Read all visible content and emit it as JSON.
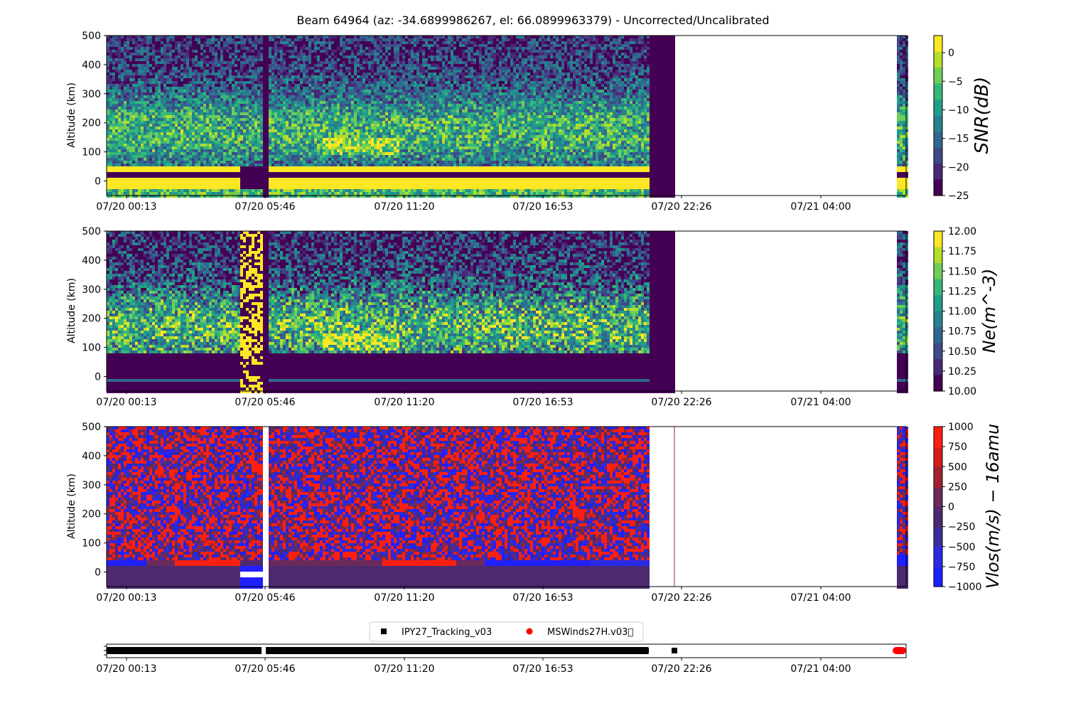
{
  "figure_title": "Beam 64964 (az: -34.6899986267, el: 66.0899963379) - Uncorrected/Uncalibrated",
  "colors": {
    "viridis": [
      "#440154",
      "#482878",
      "#3e4a89",
      "#31688e",
      "#26828e",
      "#1f9e89",
      "#35b779",
      "#6ece58",
      "#b5de2b",
      "#fde725"
    ],
    "bwr": [
      "#1f1fff",
      "#2a2ae6",
      "#3a2f9e",
      "#4d2a70",
      "#6a2b5a",
      "#a0232f",
      "#d81c18",
      "#ff1f10"
    ],
    "tracking_marker": "#000000",
    "winds_marker": "#ff0000"
  },
  "chart_data": [
    {
      "type": "heatmap",
      "panel": "snr",
      "title": "",
      "xlabel": "",
      "ylabel": "Altitude (km)",
      "colorbar_label": "SNR(dB)",
      "colorbar_range": [
        -25,
        3
      ],
      "colorbar_ticks": [
        "0",
        "−5",
        "−10",
        "−15",
        "−20",
        "−25"
      ],
      "colorbar_tick_values": [
        0,
        -5,
        -10,
        -15,
        -20,
        -25
      ],
      "ylim": [
        -50,
        500
      ],
      "yticks": [
        0,
        100,
        200,
        300,
        400,
        500
      ],
      "xticks": [
        "07/20 00:13",
        "07/20 05:46",
        "07/20 11:20",
        "07/20 16:53",
        "07/20 22:26",
        "07/21 04:00"
      ],
      "segments": [
        {
          "start": "07/20 00:13",
          "end": "07/20 05:46",
          "state": "data"
        },
        {
          "start": "07/20 05:46",
          "end": "07/20 21:30",
          "state": "data"
        },
        {
          "start": "07/20 22:30",
          "end": "07/21 06:00",
          "state": "no data"
        },
        {
          "start": "07/21 06:00",
          "end": "07/21 06:30",
          "state": "data"
        }
      ],
      "features": {
        "background_snr_db": -10,
        "enhanced_layer_altitude_km": [
          100,
          140
        ],
        "saturated_band_altitude_km": [
          -25,
          15
        ],
        "saturated_band_snr_db": 3
      }
    },
    {
      "type": "heatmap",
      "panel": "ne",
      "title": "",
      "xlabel": "",
      "ylabel": "Altitude (km)",
      "colorbar_label": "Ne(m^-3)",
      "colorbar_range": [
        10.0,
        12.0
      ],
      "colorbar_ticks": [
        "10.00",
        "10.25",
        "10.50",
        "10.75",
        "11.00",
        "11.25",
        "11.50",
        "11.75",
        "12.00"
      ],
      "colorbar_tick_values": [
        10.0,
        10.25,
        10.5,
        10.75,
        11.0,
        11.25,
        11.5,
        11.75,
        12.0
      ],
      "ylim": [
        -50,
        500
      ],
      "yticks": [
        0,
        100,
        200,
        300,
        400,
        500
      ],
      "xticks": [
        "07/20 00:13",
        "07/20 05:46",
        "07/20 11:20",
        "07/20 16:53",
        "07/20 22:26",
        "07/21 04:00"
      ],
      "features": {
        "background_log_ne": 10.6,
        "enhanced_layer_altitude_km": [
          100,
          140
        ],
        "saturated_period": [
          "07/20 04:50",
          "07/20 05:40"
        ]
      }
    },
    {
      "type": "heatmap",
      "panel": "vlos",
      "title": "",
      "xlabel": "",
      "ylabel": "Altitude (km)",
      "colorbar_label": "Vlos(m/s) − 16amu",
      "colorbar_range": [
        -1000,
        1000
      ],
      "colorbar_ticks": [
        "1000",
        "750",
        "500",
        "250",
        "0",
        "−250",
        "−500",
        "−750",
        "−1000"
      ],
      "colorbar_tick_values": [
        1000,
        750,
        500,
        250,
        0,
        -250,
        -500,
        -750,
        -1000
      ],
      "ylim": [
        -50,
        500
      ],
      "yticks": [
        0,
        100,
        200,
        300,
        400,
        500
      ],
      "xticks": [
        "07/20 00:13",
        "07/20 05:46",
        "07/20 11:20",
        "07/20 16:53",
        "07/20 22:26",
        "07/21 04:00"
      ]
    },
    {
      "type": "scatter",
      "panel": "modes",
      "title": "",
      "legend_position": "top-center",
      "xticks": [
        "07/20 00:13",
        "07/20 05:46",
        "07/20 11:20",
        "07/20 16:53",
        "07/20 22:26",
        "07/21 04:00"
      ],
      "series": [
        {
          "name": "IPY27_Tracking_v03",
          "marker": "square",
          "coverage": [
            [
              "07/20 00:13",
              "07/20 21:30"
            ]
          ],
          "points": [
            "07/20 22:13"
          ]
        },
        {
          "name": "MSWinds27H.v03\u0000",
          "marker": "circle",
          "coverage": [
            [
              "07/21 06:00",
              "07/21 06:30"
            ]
          ]
        }
      ]
    }
  ]
}
